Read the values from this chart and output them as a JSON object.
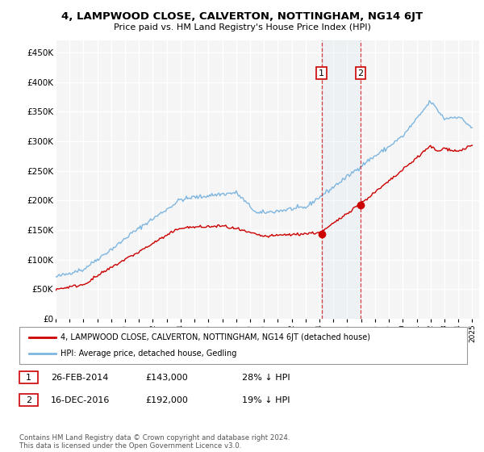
{
  "title": "4, LAMPWOOD CLOSE, CALVERTON, NOTTINGHAM, NG14 6JT",
  "subtitle": "Price paid vs. HM Land Registry's House Price Index (HPI)",
  "ylabel_ticks": [
    "£0",
    "£50K",
    "£100K",
    "£150K",
    "£200K",
    "£250K",
    "£300K",
    "£350K",
    "£400K",
    "£450K"
  ],
  "ytick_values": [
    0,
    50000,
    100000,
    150000,
    200000,
    250000,
    300000,
    350000,
    400000,
    450000
  ],
  "ylim": [
    0,
    470000
  ],
  "xlim_start": 1995.0,
  "xlim_end": 2025.5,
  "hpi_color": "#7EB6E0",
  "price_color": "#CC0000",
  "transaction1_date": 2014.15,
  "transaction1_price": 143000,
  "transaction2_date": 2016.96,
  "transaction2_price": 192000,
  "legend_property": "4, LAMPWOOD CLOSE, CALVERTON, NOTTINGHAM, NG14 6JT (detached house)",
  "legend_hpi": "HPI: Average price, detached house, Gedling",
  "row1_label": "1",
  "row1_date": "26-FEB-2014",
  "row1_price": "£143,000",
  "row1_hpi": "28% ↓ HPI",
  "row2_label": "2",
  "row2_date": "16-DEC-2016",
  "row2_price": "£192,000",
  "row2_hpi": "19% ↓ HPI",
  "footer": "Contains HM Land Registry data © Crown copyright and database right 2024.\nThis data is licensed under the Open Government Licence v3.0.",
  "background_color": "#FFFFFF",
  "plot_bg_color": "#F5F5F5"
}
